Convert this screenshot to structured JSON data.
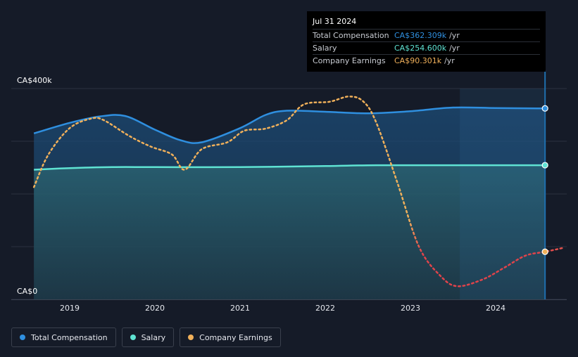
{
  "chart_data": {
    "type": "area",
    "x_ticks": [
      "2019",
      "2020",
      "2021",
      "2022",
      "2023",
      "2024"
    ],
    "y_ticks": [
      "CA$400k",
      "CA$0"
    ],
    "ylim": [
      0,
      400
    ],
    "y_unit": "CA$k",
    "series": [
      {
        "name": "Total Compensation",
        "color": "#2f8fdf",
        "points": [
          {
            "x": 2018.58,
            "y": 315
          },
          {
            "x": 2019.0,
            "y": 335
          },
          {
            "x": 2019.35,
            "y": 347
          },
          {
            "x": 2019.65,
            "y": 348
          },
          {
            "x": 2020.0,
            "y": 322
          },
          {
            "x": 2020.3,
            "y": 302
          },
          {
            "x": 2020.55,
            "y": 298
          },
          {
            "x": 2021.0,
            "y": 325
          },
          {
            "x": 2021.3,
            "y": 350
          },
          {
            "x": 2021.55,
            "y": 358
          },
          {
            "x": 2022.0,
            "y": 356
          },
          {
            "x": 2022.5,
            "y": 353
          },
          {
            "x": 2023.0,
            "y": 357
          },
          {
            "x": 2023.5,
            "y": 364
          },
          {
            "x": 2024.0,
            "y": 363
          },
          {
            "x": 2024.58,
            "y": 362.309
          }
        ]
      },
      {
        "name": "Salary",
        "color": "#5fe3d3",
        "points": [
          {
            "x": 2018.58,
            "y": 246
          },
          {
            "x": 2019.0,
            "y": 249
          },
          {
            "x": 2019.5,
            "y": 251
          },
          {
            "x": 2020.0,
            "y": 251
          },
          {
            "x": 2021.0,
            "y": 251
          },
          {
            "x": 2022.0,
            "y": 253
          },
          {
            "x": 2022.6,
            "y": 254.6
          },
          {
            "x": 2023.5,
            "y": 254.6
          },
          {
            "x": 2024.58,
            "y": 254.6
          }
        ]
      },
      {
        "name": "Company Earnings",
        "color": "#f0b05a",
        "negative_color": "#e0434a",
        "points": [
          {
            "x": 2018.58,
            "y": 213
          },
          {
            "x": 2018.75,
            "y": 275
          },
          {
            "x": 2019.0,
            "y": 325
          },
          {
            "x": 2019.25,
            "y": 343
          },
          {
            "x": 2019.4,
            "y": 340
          },
          {
            "x": 2019.7,
            "y": 310
          },
          {
            "x": 2019.95,
            "y": 290
          },
          {
            "x": 2020.2,
            "y": 275
          },
          {
            "x": 2020.35,
            "y": 246
          },
          {
            "x": 2020.55,
            "y": 285
          },
          {
            "x": 2020.85,
            "y": 298
          },
          {
            "x": 2021.05,
            "y": 320
          },
          {
            "x": 2021.3,
            "y": 324
          },
          {
            "x": 2021.55,
            "y": 340
          },
          {
            "x": 2021.75,
            "y": 370
          },
          {
            "x": 2022.05,
            "y": 375
          },
          {
            "x": 2022.28,
            "y": 385
          },
          {
            "x": 2022.45,
            "y": 375
          },
          {
            "x": 2022.6,
            "y": 335
          },
          {
            "x": 2022.85,
            "y": 220
          },
          {
            "x": 2023.1,
            "y": 100
          },
          {
            "x": 2023.35,
            "y": 45
          },
          {
            "x": 2023.55,
            "y": 25
          },
          {
            "x": 2023.85,
            "y": 38
          },
          {
            "x": 2024.1,
            "y": 60
          },
          {
            "x": 2024.35,
            "y": 83
          },
          {
            "x": 2024.58,
            "y": 90.301
          },
          {
            "x": 2024.8,
            "y": 98
          }
        ]
      }
    ],
    "grid": true,
    "legend_position": "bottom-left",
    "highlight_x": "Jul 31 2024"
  },
  "tooltip": {
    "date": "Jul 31 2024",
    "rows": [
      {
        "label": "Total Compensation",
        "value": "CA$362.309k",
        "unit": "/yr",
        "color": "#2f8fdf"
      },
      {
        "label": "Salary",
        "value": "CA$254.600k",
        "unit": "/yr",
        "color": "#5fe3d3"
      },
      {
        "label": "Company Earnings",
        "value": "CA$90.301k",
        "unit": "/yr",
        "color": "#f0b05a"
      }
    ]
  },
  "legend": [
    {
      "label": "Total Compensation",
      "color": "#2f8fdf"
    },
    {
      "label": "Salary",
      "color": "#5fe3d3"
    },
    {
      "label": "Company Earnings",
      "color": "#f0b05a"
    }
  ]
}
